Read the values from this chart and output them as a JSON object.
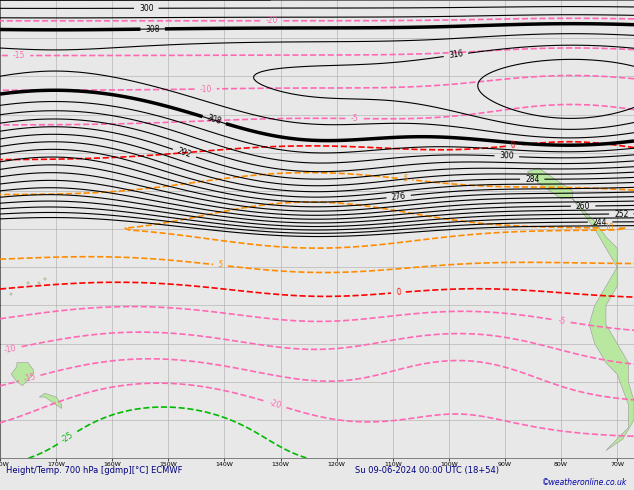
{
  "title_left": "Height/Temp. 700 hPa [gdmp][°C] ECMWF",
  "title_right": "Su 09-06-2024 00:00 UTC (18+54)",
  "copyright": "©weatheronline.co.uk",
  "ocean_color": "#e8e8e8",
  "land_color": "#b8e8a0",
  "land_edge_color": "#999999",
  "grid_color": "#aaaaaa",
  "bottom_bg": "#ddeeff",
  "figsize": [
    6.34,
    4.9
  ],
  "dpi": 100,
  "xlim": [
    -180,
    -67
  ],
  "ylim": [
    -60,
    60
  ],
  "height_color": "#000000",
  "temp_neg_color": "#ff69b4",
  "temp_pos_color": "#ff8c00",
  "temp_zero_color": "#ff0000",
  "temp_cold_color": "#00cc00"
}
